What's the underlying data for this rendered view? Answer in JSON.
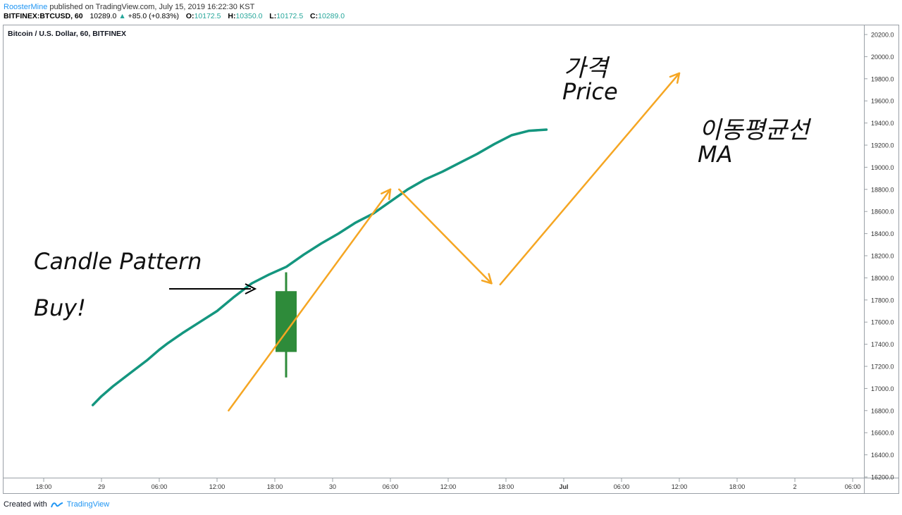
{
  "header": {
    "publisher": "RoosterMine",
    "published_text": "published on TradingView.com, July 15, 2019 16:22:30 KST",
    "symbol": "BITFINEX:BTCUSD, 60",
    "last_price": "10289.0",
    "change": "+85.0 (+0.83%)",
    "open_label": "O:",
    "open": "10172.5",
    "high_label": "H:",
    "high": "10350.0",
    "low_label": "L:",
    "low": "10172.5",
    "close_label": "C:",
    "close": "10289.0",
    "colors": {
      "publisher": "#2196f3",
      "up": "#26a69a"
    }
  },
  "chart_data": {
    "type": "line",
    "title": "Bitcoin / U.S. Dollar, 60, BITFINEX",
    "ylim": [
      16200,
      20300
    ],
    "y_ticks": [
      16200,
      16400,
      16600,
      16800,
      17000,
      17200,
      17400,
      17600,
      17800,
      18000,
      18200,
      18400,
      18600,
      18800,
      19000,
      19200,
      19400,
      19600,
      19800,
      20000,
      20200
    ],
    "y_tick_labels": [
      "16200.0",
      "16400.0",
      "16600.0",
      "16800.0",
      "17000.0",
      "17200.0",
      "17400.0",
      "17600.0",
      "17800.0",
      "18000.0",
      "18200.0",
      "18400.0",
      "18600.0",
      "18800.0",
      "19000.0",
      "19200.0",
      "19400.0",
      "19600.0",
      "19800.0",
      "20000.0",
      "20200.0"
    ],
    "x_tick_labels": [
      "18:00",
      "29",
      "06:00",
      "12:00",
      "18:00",
      "30",
      "06:00",
      "12:00",
      "18:00",
      "Jul",
      "06:00",
      "12:00",
      "18:00",
      "2",
      "06:00"
    ],
    "series": [
      {
        "name": "MA",
        "color": "#14967f",
        "x": [
          0.85,
          1.0,
          1.2,
          1.5,
          1.8,
          2.0,
          2.15,
          2.4,
          2.7,
          3.0,
          3.3,
          3.6,
          3.9,
          4.2,
          4.5,
          4.8,
          5.1,
          5.4,
          5.7,
          6.0,
          6.3,
          6.6,
          6.9,
          7.2,
          7.5,
          7.8,
          8.1,
          8.4,
          8.7,
          9.0,
          9.3,
          9.6,
          9.8,
          10.0,
          10.2,
          10.3
        ],
        "values": [
          16850,
          16930,
          17020,
          17140,
          17260,
          17350,
          17410,
          17500,
          17600,
          17700,
          17830,
          17950,
          18030,
          18100,
          18210,
          18310,
          18400,
          18500,
          18580,
          18690,
          18800,
          18890,
          18960,
          19040,
          19120,
          19210,
          19290,
          19330,
          19340,
          19340,
          19340,
          19340,
          19340,
          19340,
          19340,
          19340
        ]
      }
    ],
    "candle": {
      "x": 4.2,
      "open": 17330,
      "close": 17880,
      "high": 18050,
      "low": 17100,
      "color": "#2e8b3a"
    },
    "price_arrows": [
      {
        "from": [
          3.2,
          16800
        ],
        "to": [
          6.0,
          18800
        ]
      },
      {
        "from": [
          6.15,
          18800
        ],
        "to": [
          7.75,
          17950
        ]
      },
      {
        "from": [
          7.9,
          17940
        ],
        "to": [
          11.0,
          19850
        ]
      }
    ],
    "annotations": {
      "candle_pattern": "Candle Pattern",
      "buy": "Buy!",
      "price_ko": "가격",
      "price_en": "Price",
      "ma_ko": "이동평균선",
      "ma_en": "MA"
    },
    "colors": {
      "price_arrow": "#f5a623",
      "ma": "#14967f",
      "candle": "#2e8b3a",
      "pointer_arrow": "#000000"
    }
  },
  "footer": {
    "created_with": "Created with",
    "brand": "TradingView"
  }
}
